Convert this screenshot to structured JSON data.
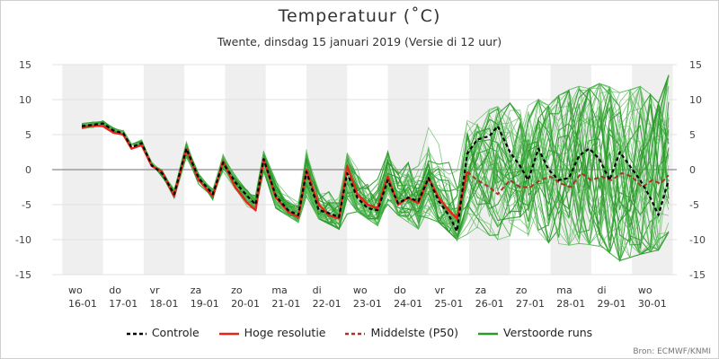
{
  "title": "Temperatuur (˚C)",
  "subtitle": "Twente, dinsdag 15 januari 2019 (Versie di 12 uur)",
  "credit": "Bron: ECMWF/KNMI",
  "colors": {
    "controle": "#000000",
    "hoge_resolutie": "#e8251b",
    "middelste": "#a8352b",
    "verstoorde": "#2a9a2a",
    "verstoorde_light": "#5dbb5d",
    "weekend_band": "#efefef",
    "zero_line": "#8c8c8c"
  },
  "legend": [
    {
      "label": "Controle",
      "style": "dashed",
      "color": "#000000"
    },
    {
      "label": "Hoge resolutie",
      "style": "solid",
      "color": "#e8251b"
    },
    {
      "label": "Middelste (P50)",
      "style": "dashed",
      "color": "#a8352b"
    },
    {
      "label": "Verstoorde runs",
      "style": "solid",
      "color": "#2a9a2a"
    }
  ],
  "chart_data": {
    "type": "line",
    "title": "Temperatuur (˚C)",
    "subtitle": "Twente, dinsdag 15 januari 2019 (Versie di 12 uur)",
    "ylim": [
      -15,
      15
    ],
    "yticks": [
      15,
      10,
      5,
      0,
      -5,
      -10,
      -15
    ],
    "xlim": [
      15.25,
      30.6
    ],
    "x_ticks": [
      {
        "day": "wo",
        "date": "16-01",
        "x": 16
      },
      {
        "day": "do",
        "date": "17-01",
        "x": 17
      },
      {
        "day": "vr",
        "date": "18-01",
        "x": 18
      },
      {
        "day": "za",
        "date": "19-01",
        "x": 19
      },
      {
        "day": "zo",
        "date": "20-01",
        "x": 20
      },
      {
        "day": "ma",
        "date": "21-01",
        "x": 21
      },
      {
        "day": "di",
        "date": "22-01",
        "x": 22
      },
      {
        "day": "wo",
        "date": "23-01",
        "x": 23
      },
      {
        "day": "do",
        "date": "24-01",
        "x": 24
      },
      {
        "day": "vr",
        "date": "25-01",
        "x": 25
      },
      {
        "day": "za",
        "date": "26-01",
        "x": 26
      },
      {
        "day": "zo",
        "date": "27-01",
        "x": 27
      },
      {
        "day": "ma",
        "date": "28-01",
        "x": 28
      },
      {
        "day": "di",
        "date": "29-01",
        "x": 29
      },
      {
        "day": "wo",
        "date": "30-01",
        "x": 30
      }
    ],
    "shaded_days": [
      16,
      18,
      20,
      22,
      24,
      26,
      28,
      30
    ],
    "zero_line": true,
    "series": [
      {
        "name": "Controle",
        "style": "dashed",
        "points": [
          [
            15.98,
            6.2
          ],
          [
            16.25,
            6.4
          ],
          [
            16.5,
            6.6
          ],
          [
            16.75,
            5.6
          ],
          [
            17.0,
            5.2
          ],
          [
            17.2,
            3.2
          ],
          [
            17.45,
            3.8
          ],
          [
            17.7,
            0.6
          ],
          [
            17.95,
            -0.5
          ],
          [
            18.25,
            -3.5
          ],
          [
            18.55,
            3.0
          ],
          [
            18.85,
            -1.2
          ],
          [
            19.2,
            -3.5
          ],
          [
            19.45,
            1.0
          ],
          [
            19.75,
            -1.8
          ],
          [
            20.05,
            -3.8
          ],
          [
            20.25,
            -5.0
          ],
          [
            20.45,
            1.5
          ],
          [
            20.75,
            -3.8
          ],
          [
            21.05,
            -5.8
          ],
          [
            21.3,
            -6.5
          ],
          [
            21.5,
            -0.3
          ],
          [
            21.8,
            -5.8
          ],
          [
            22.05,
            -6.2
          ],
          [
            22.3,
            -6.8
          ],
          [
            22.5,
            -0.5
          ],
          [
            22.75,
            -4.0
          ],
          [
            23.0,
            -5.5
          ],
          [
            23.25,
            -5.8
          ],
          [
            23.5,
            -1.5
          ],
          [
            23.75,
            -4.8
          ],
          [
            24.0,
            -4.0
          ],
          [
            24.25,
            -4.5
          ],
          [
            24.5,
            -1.2
          ],
          [
            24.75,
            -4.5
          ],
          [
            25.0,
            -6.5
          ],
          [
            25.2,
            -8.8
          ],
          [
            25.45,
            2.3
          ],
          [
            25.7,
            4.3
          ],
          [
            26.0,
            4.8
          ],
          [
            26.2,
            6.2
          ],
          [
            26.5,
            2.5
          ],
          [
            26.75,
            0.5
          ],
          [
            26.95,
            -1.5
          ],
          [
            27.2,
            3.0
          ],
          [
            27.45,
            0.0
          ],
          [
            27.7,
            -1.5
          ],
          [
            27.95,
            -1.2
          ],
          [
            28.2,
            2.0
          ],
          [
            28.45,
            3.0
          ],
          [
            28.7,
            1.5
          ],
          [
            28.95,
            -1.5
          ],
          [
            29.2,
            2.5
          ],
          [
            29.45,
            0.5
          ],
          [
            29.7,
            -1.5
          ],
          [
            29.95,
            -4.0
          ],
          [
            30.15,
            -6.5
          ],
          [
            30.4,
            -1.5
          ]
        ]
      },
      {
        "name": "Hoge resolutie",
        "style": "solid",
        "points": [
          [
            15.98,
            6.0
          ],
          [
            16.25,
            6.3
          ],
          [
            16.5,
            6.2
          ],
          [
            16.75,
            5.3
          ],
          [
            17.0,
            5.0
          ],
          [
            17.2,
            3.0
          ],
          [
            17.45,
            3.5
          ],
          [
            17.7,
            0.5
          ],
          [
            17.95,
            -0.3
          ],
          [
            18.25,
            -3.8
          ],
          [
            18.55,
            3.0
          ],
          [
            18.85,
            -1.5
          ],
          [
            19.2,
            -3.8
          ],
          [
            19.45,
            1.2
          ],
          [
            19.75,
            -2.5
          ],
          [
            20.05,
            -4.8
          ],
          [
            20.25,
            -5.8
          ],
          [
            20.45,
            1.5
          ],
          [
            20.75,
            -4.0
          ],
          [
            21.05,
            -6.0
          ],
          [
            21.3,
            -6.8
          ],
          [
            21.5,
            0.0
          ],
          [
            21.8,
            -5.0
          ],
          [
            22.05,
            -6.5
          ],
          [
            22.3,
            -7.0
          ],
          [
            22.5,
            0.5
          ],
          [
            22.75,
            -3.5
          ],
          [
            23.0,
            -5.0
          ],
          [
            23.25,
            -5.5
          ],
          [
            23.5,
            -1.0
          ],
          [
            23.75,
            -5.0
          ],
          [
            24.0,
            -4.0
          ],
          [
            24.25,
            -4.8
          ],
          [
            24.5,
            -1.2
          ],
          [
            24.75,
            -4.0
          ],
          [
            25.0,
            -5.8
          ],
          [
            25.2,
            -7.0
          ],
          [
            25.45,
            -0.3
          ]
        ]
      },
      {
        "name": "Middelste (P50)",
        "style": "dashed",
        "points": [
          [
            25.45,
            -0.3
          ],
          [
            25.7,
            -1.5
          ],
          [
            26.0,
            -2.5
          ],
          [
            26.2,
            -3.5
          ],
          [
            26.5,
            -1.5
          ],
          [
            26.75,
            -2.5
          ],
          [
            27.0,
            -2.5
          ],
          [
            27.25,
            -1.5
          ],
          [
            27.5,
            -1.0
          ],
          [
            27.75,
            -2.0
          ],
          [
            28.0,
            -2.5
          ],
          [
            28.25,
            -0.5
          ],
          [
            28.5,
            -1.5
          ],
          [
            28.75,
            -1.0
          ],
          [
            29.0,
            -1.5
          ],
          [
            29.25,
            -0.5
          ],
          [
            29.5,
            -1.0
          ],
          [
            29.75,
            -2.5
          ],
          [
            30.0,
            -1.5
          ],
          [
            30.2,
            -2.0
          ],
          [
            30.4,
            -0.8
          ]
        ]
      }
    ],
    "ensemble": {
      "name": "Verstoorde runs",
      "spread_min": [
        [
          15.98,
          5.8
        ],
        [
          16.5,
          5.8
        ],
        [
          17.0,
          4.5
        ],
        [
          17.45,
          2.5
        ],
        [
          17.95,
          -1.0
        ],
        [
          18.25,
          -5.0
        ],
        [
          18.85,
          -2.5
        ],
        [
          19.2,
          -5.5
        ],
        [
          19.75,
          -3.5
        ],
        [
          20.25,
          -6.5
        ],
        [
          20.75,
          -5.5
        ],
        [
          21.3,
          -7.5
        ],
        [
          21.8,
          -7.0
        ],
        [
          22.3,
          -8.5
        ],
        [
          22.75,
          -6.0
        ],
        [
          23.25,
          -8.0
        ],
        [
          23.75,
          -6.5
        ],
        [
          24.25,
          -8.5
        ],
        [
          24.75,
          -7.5
        ],
        [
          25.2,
          -10.0
        ],
        [
          25.7,
          -8.5
        ],
        [
          26.2,
          -10.0
        ],
        [
          26.75,
          -9.0
        ],
        [
          27.2,
          -10.0
        ],
        [
          27.75,
          -11.0
        ],
        [
          28.25,
          -10.5
        ],
        [
          28.75,
          -11.0
        ],
        [
          29.2,
          -13.0
        ],
        [
          29.75,
          -12.0
        ],
        [
          30.15,
          -11.5
        ],
        [
          30.4,
          -9.0
        ]
      ],
      "spread_max": [
        [
          15.98,
          6.8
        ],
        [
          16.5,
          7.2
        ],
        [
          17.0,
          6.0
        ],
        [
          17.45,
          5.0
        ],
        [
          17.95,
          1.5
        ],
        [
          18.25,
          -1.5
        ],
        [
          18.55,
          4.0
        ],
        [
          18.85,
          1.0
        ],
        [
          19.2,
          -1.5
        ],
        [
          19.45,
          2.5
        ],
        [
          19.75,
          1.0
        ],
        [
          20.25,
          -2.0
        ],
        [
          20.45,
          2.5
        ],
        [
          20.75,
          2.0
        ],
        [
          21.3,
          -1.0
        ],
        [
          21.5,
          4.0
        ],
        [
          21.8,
          3.0
        ],
        [
          22.3,
          0.5
        ],
        [
          22.5,
          4.5
        ],
        [
          22.75,
          5.0
        ],
        [
          23.25,
          2.0
        ],
        [
          23.5,
          3.5
        ],
        [
          23.75,
          5.5
        ],
        [
          24.25,
          3.0
        ],
        [
          24.5,
          6.0
        ],
        [
          24.75,
          6.0
        ],
        [
          25.2,
          4.5
        ],
        [
          25.45,
          7.0
        ],
        [
          25.7,
          8.0
        ],
        [
          26.2,
          9.0
        ],
        [
          26.5,
          9.5
        ],
        [
          26.75,
          8.5
        ],
        [
          27.2,
          10.0
        ],
        [
          27.5,
          9.0
        ],
        [
          27.75,
          11.0
        ],
        [
          28.25,
          12.0
        ],
        [
          28.5,
          11.5
        ],
        [
          28.75,
          12.5
        ],
        [
          29.2,
          11.0
        ],
        [
          29.5,
          11.5
        ],
        [
          29.75,
          12.0
        ],
        [
          30.15,
          9.5
        ],
        [
          30.4,
          13.5
        ]
      ]
    }
  }
}
